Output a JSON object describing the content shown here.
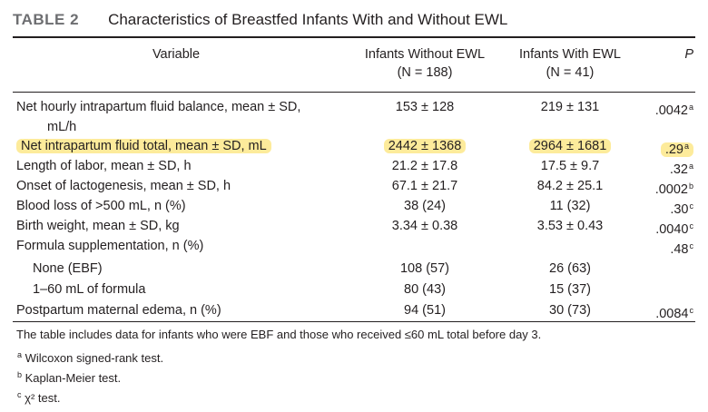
{
  "table": {
    "label": "TABLE 2",
    "caption": "Characteristics of Breastfed Infants With and Without EWL"
  },
  "header": {
    "variable": "Variable",
    "col1_name": "Infants Without EWL",
    "col1_n": "(N = 188)",
    "col2_name": "Infants With EWL",
    "col2_n": "(N = 41)",
    "p": "P"
  },
  "rows": [
    {
      "variable": "Net hourly intrapartum fluid balance, mean ± SD,",
      "variable_cont": "mL/h",
      "without": "153 ± 128",
      "with": "219 ± 131",
      "p": ".0042",
      "p_sup": "a"
    },
    {
      "variable": "Net intrapartum fluid total, mean ± SD, mL",
      "without": "2442 ± 1368",
      "with": "2964 ± 1681",
      "p": ".29",
      "p_sup": "a",
      "highlighted": true
    },
    {
      "variable": "Length of labor, mean ± SD, h",
      "without": "21.2 ± 17.8",
      "with": "17.5 ± 9.7",
      "p": ".32",
      "p_sup": "a"
    },
    {
      "variable": "Onset of lactogenesis, mean ± SD, h",
      "without": "67.1 ± 21.7",
      "with": "84.2 ± 25.1",
      "p": ".0002",
      "p_sup": "b"
    },
    {
      "variable": "Blood loss of >500 mL, n (%)",
      "without": "38 (24)",
      "with": "11 (32)",
      "p": ".30",
      "p_sup": "c"
    },
    {
      "variable": "Birth weight, mean ± SD, kg",
      "without": "3.34 ± 0.38",
      "with": "3.53 ± 0.43",
      "p": ".0040",
      "p_sup": "c"
    },
    {
      "variable": "Formula supplementation, n (%)",
      "without": "",
      "with": "",
      "p": ".48",
      "p_sup": "c"
    },
    {
      "variable": "None (EBF)",
      "indent": true,
      "without": "108 (57)",
      "with": "26 (63)",
      "p": "",
      "p_sup": ""
    },
    {
      "variable": "1–60 mL of formula",
      "indent": true,
      "without": "80 (43)",
      "with": "15 (37)",
      "p": "",
      "p_sup": ""
    },
    {
      "variable": "Postpartum maternal edema, n (%)",
      "without": "94 (51)",
      "with": "30 (73)",
      "p": ".0084",
      "p_sup": "c"
    }
  ],
  "footnotes": {
    "note": "The table includes data for infants who were EBF and those who received ≤60 mL total before day 3.",
    "a_mark": "a",
    "a_text": "Wilcoxon signed-rank test.",
    "b_mark": "b",
    "b_text": "Kaplan-Meier test.",
    "c_mark": "c",
    "c_text": "χ² test."
  },
  "colors": {
    "highlight": "#fdeb9b",
    "text": "#231f20",
    "label_gray": "#6d6e71"
  }
}
